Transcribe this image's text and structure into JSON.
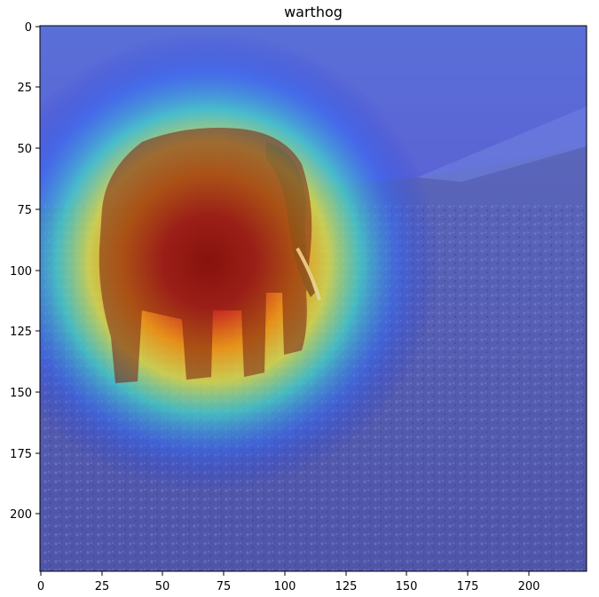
{
  "title": "warthog",
  "axes": {
    "x_ticks": [
      "0",
      "25",
      "50",
      "75",
      "100",
      "125",
      "150",
      "175",
      "200"
    ],
    "y_ticks": [
      "0",
      "25",
      "50",
      "75",
      "100",
      "125",
      "150",
      "175",
      "200"
    ]
  },
  "image": {
    "description_icon": "elephant-photo-with-heatmap-overlay",
    "heatmap_colors": [
      "#00008f",
      "#0000ff",
      "#00ffff",
      "#ffff00",
      "#ff0000",
      "#8b0000"
    ]
  }
}
